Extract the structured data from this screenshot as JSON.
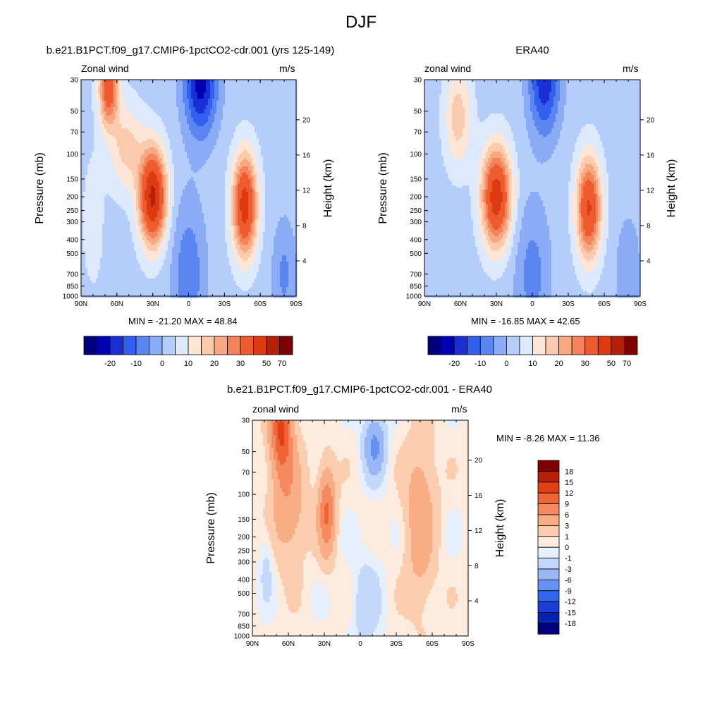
{
  "figure_title": "DJF",
  "colors": {
    "abs_scale": [
      "#00007f",
      "#0000b2",
      "#1a2fd4",
      "#3160ee",
      "#5b86f2",
      "#8aacf6",
      "#b5cdfa",
      "#dde9fd",
      "#fde6d6",
      "#fbc9ac",
      "#f8a781",
      "#f4835b",
      "#ee5b2f",
      "#de3a12",
      "#b5200a",
      "#7f0000"
    ],
    "diff_scale": [
      "#00007f",
      "#0a22b2",
      "#1a3fd6",
      "#3366ee",
      "#6690f2",
      "#99b6f7",
      "#c4d8fb",
      "#e6effd",
      "#fdebdd",
      "#fbccad",
      "#f9ad85",
      "#f5895f",
      "#ef6436",
      "#e23f14",
      "#b5200a",
      "#7f0000"
    ]
  },
  "panels": {
    "model": {
      "title": "b.e21.B1PCT.f09_g17.CMIP6-1pctCO2-cdr.001 (yrs 125-149)",
      "left_label": "Zonal wind",
      "right_label": "m/s",
      "ylabel": "Pressure (mb)",
      "ylabel_right": "Height (km)",
      "min_max": "MIN = -21.20  MAX =  48.84"
    },
    "obs": {
      "title": "ERA40",
      "left_label": "zonal wind",
      "right_label": "m/s",
      "ylabel": "Pressure (mb)",
      "ylabel_right": "Height (km)",
      "min_max": "MIN = -16.85  MAX =  42.65"
    },
    "diff": {
      "title": "b.e21.B1PCT.f09_g17.CMIP6-1pctCO2-cdr.001 - ERA40",
      "left_label": "zonal wind",
      "right_label": "m/s",
      "ylabel": "Pressure (mb)",
      "ylabel_right": "Height (km)",
      "min_max": "MIN =  -8.26  MAX =  11.36"
    }
  },
  "chart_data": [
    {
      "type": "heatmap",
      "name": "model",
      "x_ticks": [
        "90N",
        "60N",
        "30N",
        "0",
        "30S",
        "60S",
        "90S"
      ],
      "x_values": [
        90,
        60,
        30,
        0,
        -30,
        -60,
        -90
      ],
      "y_ticks": [
        "30",
        "50",
        "70",
        "100",
        "150",
        "200",
        "250",
        "300",
        "400",
        "500",
        "700",
        "850",
        "1000"
      ],
      "y_values": [
        30,
        50,
        70,
        100,
        150,
        200,
        250,
        300,
        400,
        500,
        700,
        850,
        1000
      ],
      "y_log": true,
      "right_ticks": [
        "20",
        "16",
        "12",
        "8",
        "4"
      ],
      "right_values": [
        20,
        16,
        12,
        8,
        4
      ],
      "colorbar_ticks": [
        "-20",
        "-10",
        "0",
        "10",
        "20",
        "30",
        "50",
        "70"
      ],
      "colorbar_levels": [
        -20,
        -10,
        0,
        10,
        20,
        30,
        50,
        70
      ],
      "min": -21.2,
      "max": 48.84,
      "features": [
        {
          "lat": 30,
          "p": 200,
          "value": 48.84
        },
        {
          "lat": -47,
          "p": 220,
          "value": 38
        },
        {
          "lat": 66,
          "p": 35,
          "value": 30
        },
        {
          "lat": -10,
          "p": 30,
          "value": -21.2
        },
        {
          "lat": -75,
          "p": 800,
          "value": -10
        }
      ]
    },
    {
      "type": "heatmap",
      "name": "obs",
      "x_ticks": [
        "90N",
        "60N",
        "30N",
        "0",
        "30S",
        "60S",
        "90S"
      ],
      "x_values": [
        90,
        60,
        30,
        0,
        -30,
        -60,
        -90
      ],
      "y_ticks": [
        "30",
        "50",
        "70",
        "100",
        "150",
        "200",
        "250",
        "300",
        "400",
        "500",
        "700",
        "850",
        "1000"
      ],
      "y_values": [
        30,
        50,
        70,
        100,
        150,
        200,
        250,
        300,
        400,
        500,
        700,
        850,
        1000
      ],
      "y_log": true,
      "right_ticks": [
        "20",
        "16",
        "12",
        "8",
        "4"
      ],
      "right_values": [
        20,
        16,
        12,
        8,
        4
      ],
      "colorbar_ticks": [
        "-20",
        "-10",
        "0",
        "10",
        "20",
        "30",
        "50",
        "70"
      ],
      "colorbar_levels": [
        -20,
        -10,
        0,
        10,
        20,
        30,
        50,
        70
      ],
      "min": -16.85,
      "max": 42.65,
      "features": [
        {
          "lat": 30,
          "p": 200,
          "value": 42.65
        },
        {
          "lat": -47,
          "p": 230,
          "value": 35
        },
        {
          "lat": 60,
          "p": 60,
          "value": 18
        },
        {
          "lat": -10,
          "p": 30,
          "value": -16.85
        }
      ]
    },
    {
      "type": "heatmap",
      "name": "difference",
      "x_ticks": [
        "90N",
        "60N",
        "30N",
        "0",
        "30S",
        "60S",
        "90S"
      ],
      "x_values": [
        90,
        60,
        30,
        0,
        -30,
        -60,
        -90
      ],
      "y_ticks": [
        "30",
        "50",
        "70",
        "100",
        "150",
        "200",
        "250",
        "300",
        "400",
        "500",
        "700",
        "850",
        "1000"
      ],
      "y_values": [
        30,
        50,
        70,
        100,
        150,
        200,
        250,
        300,
        400,
        500,
        700,
        850,
        1000
      ],
      "y_log": true,
      "right_ticks": [
        "20",
        "16",
        "12",
        "8",
        "4"
      ],
      "right_values": [
        20,
        16,
        12,
        8,
        4
      ],
      "colorbar_ticks": [
        "18",
        "15",
        "12",
        "9",
        "6",
        "3",
        "1",
        "0",
        "-1",
        "-3",
        "-6",
        "-9",
        "-12",
        "-15",
        "-18"
      ],
      "colorbar_levels": [
        18,
        15,
        12,
        9,
        6,
        3,
        1,
        0,
        -1,
        -3,
        -6,
        -9,
        -12,
        -15,
        -18
      ],
      "min": -8.26,
      "max": 11.36,
      "features": [
        {
          "lat": 65,
          "p": 35,
          "value": 11.36
        },
        {
          "lat": 28,
          "p": 130,
          "value": 8
        },
        {
          "lat": -50,
          "p": 150,
          "value": 5
        },
        {
          "lat": -10,
          "p": 50,
          "value": -6
        }
      ]
    }
  ]
}
